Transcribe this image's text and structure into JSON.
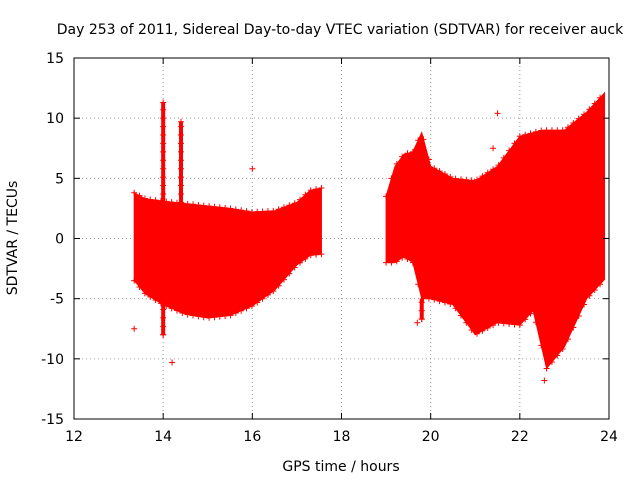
{
  "chart_data": {
    "type": "scatter",
    "title": "Day 253 of 2011, Sidereal Day-to-day VTEC variation (SDTVAR) for receiver auck",
    "xlabel": "GPS time / hours",
    "ylabel": "SDTVAR / TECUs",
    "xlim": [
      12,
      24
    ],
    "ylim": [
      -15,
      15
    ],
    "xticks": [
      12,
      14,
      16,
      18,
      20,
      22,
      24
    ],
    "yticks": [
      -15,
      -10,
      -5,
      0,
      5,
      10,
      15
    ],
    "xtick_labels": [
      "12",
      "14",
      "16",
      "18",
      "20",
      "22",
      "24"
    ],
    "ytick_labels": [
      "-15",
      "-10",
      "-5",
      "0",
      "5",
      "10",
      "15"
    ],
    "grid": true,
    "marker": "+",
    "series": [
      {
        "name": "segment-1",
        "color": "#ff0000",
        "upper": [
          [
            13.35,
            3.8
          ],
          [
            13.6,
            3.3
          ],
          [
            14.0,
            3.1
          ],
          [
            14.5,
            2.9
          ],
          [
            15.0,
            2.7
          ],
          [
            15.5,
            2.5
          ],
          [
            16.0,
            2.2
          ],
          [
            16.5,
            2.3
          ],
          [
            17.0,
            3.0
          ],
          [
            17.3,
            4.0
          ],
          [
            17.55,
            4.2
          ]
        ],
        "lower": [
          [
            13.35,
            -3.5
          ],
          [
            13.6,
            -4.6
          ],
          [
            14.0,
            -5.5
          ],
          [
            14.5,
            -6.3
          ],
          [
            15.0,
            -6.6
          ],
          [
            15.5,
            -6.4
          ],
          [
            16.0,
            -5.6
          ],
          [
            16.5,
            -4.3
          ],
          [
            17.0,
            -2.2
          ],
          [
            17.3,
            -1.4
          ],
          [
            17.55,
            -1.3
          ]
        ]
      },
      {
        "name": "segment-2",
        "color": "#ff0000",
        "upper": [
          [
            19.0,
            3.5
          ],
          [
            19.2,
            6.0
          ],
          [
            19.4,
            7.0
          ],
          [
            19.6,
            7.2
          ],
          [
            19.8,
            8.8
          ],
          [
            20.0,
            6.0
          ],
          [
            20.5,
            5.0
          ],
          [
            21.0,
            4.8
          ],
          [
            21.5,
            6.0
          ],
          [
            22.0,
            8.5
          ],
          [
            22.5,
            9.0
          ],
          [
            23.0,
            9.0
          ],
          [
            23.5,
            10.5
          ],
          [
            23.9,
            12.1
          ]
        ],
        "lower": [
          [
            19.0,
            -2.0
          ],
          [
            19.2,
            -2.0
          ],
          [
            19.4,
            -1.5
          ],
          [
            19.6,
            -2.0
          ],
          [
            19.8,
            -5.0
          ],
          [
            20.0,
            -5.0
          ],
          [
            20.5,
            -5.5
          ],
          [
            21.0,
            -8.0
          ],
          [
            21.5,
            -7.0
          ],
          [
            22.0,
            -7.2
          ],
          [
            22.3,
            -6.0
          ],
          [
            22.6,
            -10.8
          ],
          [
            23.0,
            -9.0
          ],
          [
            23.5,
            -5.0
          ],
          [
            23.9,
            -3.4
          ]
        ]
      }
    ],
    "spikes": [
      {
        "x": 14.0,
        "from": 3.0,
        "to": 11.3
      },
      {
        "x": 14.4,
        "from": 3.0,
        "to": 9.7
      },
      {
        "x": 14.0,
        "from": -5.0,
        "to": -8.0
      },
      {
        "x": 19.8,
        "from": -5.0,
        "to": -6.7
      }
    ],
    "outliers": [
      {
        "x": 13.35,
        "y": -7.5
      },
      {
        "x": 14.2,
        "y": -10.3
      },
      {
        "x": 16.0,
        "y": 5.8
      },
      {
        "x": 19.7,
        "y": -7.0
      },
      {
        "x": 21.4,
        "y": 7.5
      },
      {
        "x": 21.5,
        "y": 10.4
      },
      {
        "x": 22.55,
        "y": -11.8
      }
    ]
  }
}
